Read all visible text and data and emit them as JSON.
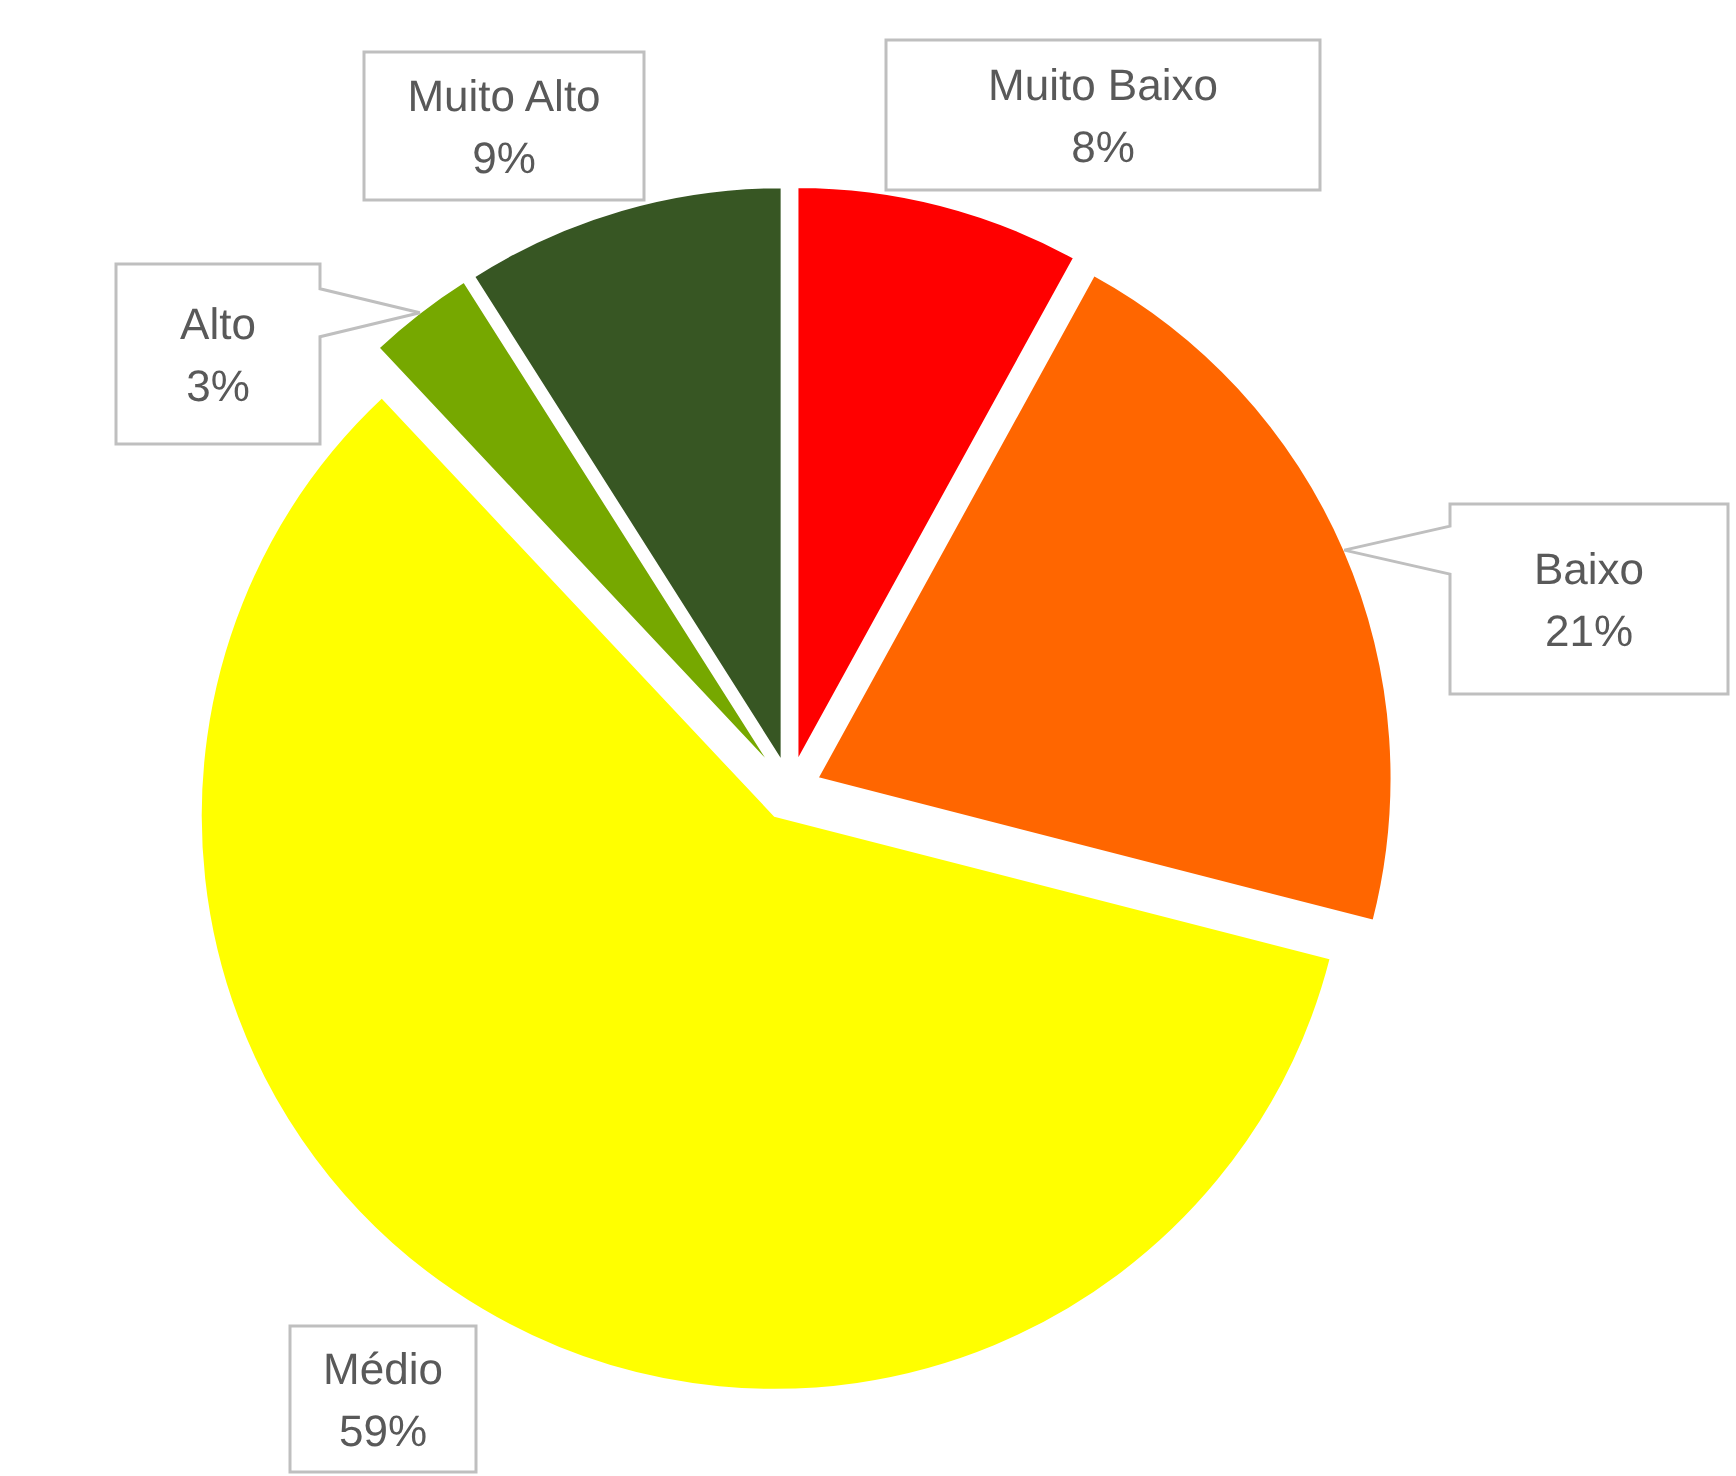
{
  "chart_data": {
    "type": "pie",
    "categories": [
      "Muito Baixo",
      "Baixo",
      "Médio",
      "Alto",
      "Muito Alto"
    ],
    "values": [
      8,
      21,
      59,
      3,
      9
    ],
    "colors": [
      "#ff0000",
      "#ff6600",
      "#ffff00",
      "#76a800",
      "#375623"
    ],
    "value_labels": [
      "8%",
      "21%",
      "59%",
      "3%",
      "9%"
    ]
  }
}
